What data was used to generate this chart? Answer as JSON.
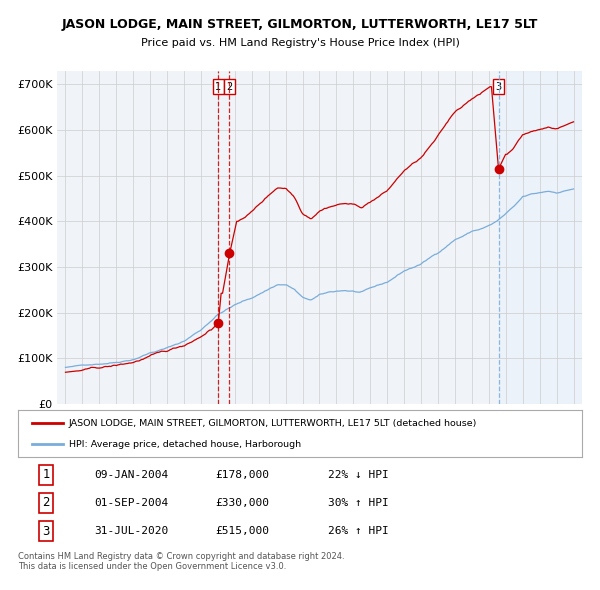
{
  "title": "JASON LODGE, MAIN STREET, GILMORTON, LUTTERWORTH, LE17 5LT",
  "subtitle": "Price paid vs. HM Land Registry's House Price Index (HPI)",
  "ytick_values": [
    0,
    100000,
    200000,
    300000,
    400000,
    500000,
    600000,
    700000
  ],
  "ylim": [
    0,
    730000
  ],
  "sale_dates_num": [
    2004.03,
    2004.67,
    2020.58
  ],
  "sale_prices": [
    178000,
    330000,
    515000
  ],
  "sale_labels": [
    "1",
    "2",
    "3"
  ],
  "vline_styles": [
    "red_dashed",
    "red_dashed",
    "blue_dashed"
  ],
  "legend_red": "JASON LODGE, MAIN STREET, GILMORTON, LUTTERWORTH, LE17 5LT (detached house)",
  "legend_blue": "HPI: Average price, detached house, Harborough",
  "table_rows": [
    [
      "1",
      "09-JAN-2004",
      "£178,000",
      "22% ↓ HPI"
    ],
    [
      "2",
      "01-SEP-2004",
      "£330,000",
      "30% ↑ HPI"
    ],
    [
      "3",
      "31-JUL-2020",
      "£515,000",
      "26% ↑ HPI"
    ]
  ],
  "footer": "Contains HM Land Registry data © Crown copyright and database right 2024.\nThis data is licensed under the Open Government Licence v3.0.",
  "red_color": "#cc0000",
  "blue_color": "#7aaddb",
  "vline_red_color": "#cc0000",
  "vline_blue_color": "#7aaddb",
  "bg_color": "#ffffff",
  "plot_bg": "#f0f4f8",
  "grid_color": "#cccccc",
  "shade_color": "#ddeeff"
}
